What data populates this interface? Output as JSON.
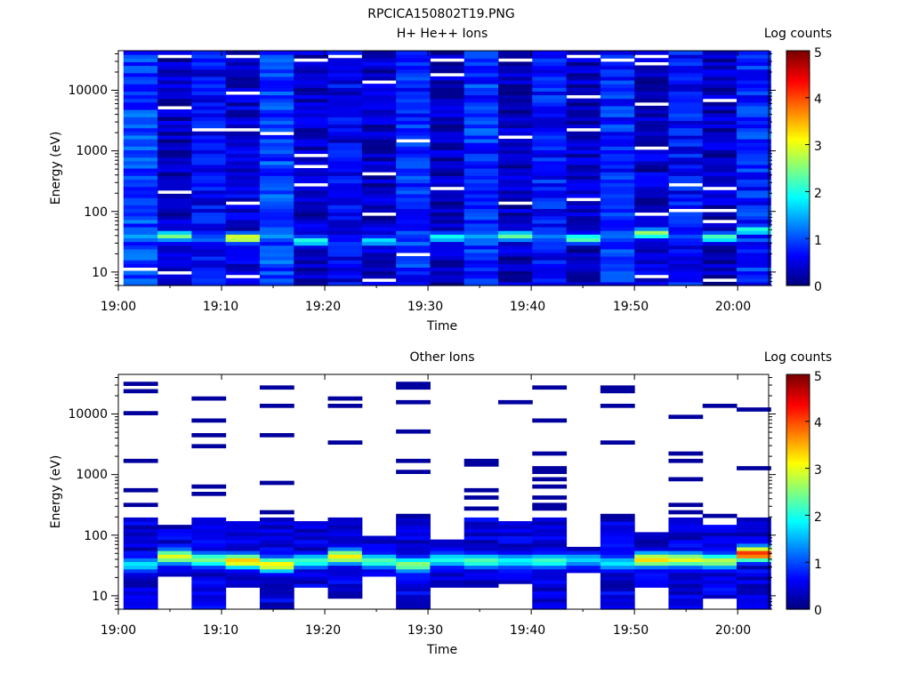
{
  "figure_title": "RPCICA150802T19.PNG",
  "chart_data": [
    {
      "type": "heatmap",
      "title": "H+ He++ Ions",
      "xlabel": "Time",
      "ylabel": "Energy (eV)",
      "x_ticks": [
        "19:00",
        "19:10",
        "19:20",
        "19:30",
        "19:40",
        "19:50",
        "20:00"
      ],
      "x_range_minutes": [
        0,
        63
      ],
      "y_ticks": [
        "10",
        "100",
        "1000",
        "10000"
      ],
      "y_scale": "log",
      "y_range_ev": [
        6,
        45000
      ],
      "colorbar": {
        "label": "Log counts",
        "range": [
          0,
          5
        ],
        "ticks": [
          "0",
          "1",
          "2",
          "3",
          "4",
          "5"
        ],
        "colormap": "jet"
      },
      "columns": [
        {
          "t_start": 0.5,
          "t_end": 3.8,
          "peak_ev": 38,
          "peak_log": 1.5,
          "bg_log": 0.95,
          "gaps": [
            12
          ]
        },
        {
          "t_start": 3.8,
          "t_end": 7.1,
          "peak_ev": 40,
          "peak_log": 2.5,
          "bg_log": 0.3,
          "gaps": [
            10,
            200,
            5500,
            35000
          ]
        },
        {
          "t_start": 7.1,
          "t_end": 10.4,
          "peak_ev": 36,
          "peak_log": 1.2,
          "bg_log": 0.6,
          "gaps": [
            2400
          ]
        },
        {
          "t_start": 10.4,
          "t_end": 13.7,
          "peak_ev": 37,
          "peak_log": 3.2,
          "bg_log": 0.4,
          "gaps": [
            8,
            140,
            2200,
            9000,
            36000
          ]
        },
        {
          "t_start": 13.7,
          "t_end": 17.0,
          "peak_ev": 40,
          "peak_log": 1.4,
          "bg_log": 0.95,
          "gaps": [
            2000
          ]
        },
        {
          "t_start": 17.0,
          "t_end": 20.3,
          "peak_ev": 33,
          "peak_log": 2.1,
          "bg_log": 0.35,
          "gaps": [
            260,
            550,
            900,
            32000
          ]
        },
        {
          "t_start": 20.3,
          "t_end": 23.6,
          "peak_ev": 30,
          "peak_log": 0.9,
          "bg_log": 0.55,
          "gaps": [
            35000
          ]
        },
        {
          "t_start": 23.6,
          "t_end": 26.9,
          "peak_ev": 33,
          "peak_log": 1.8,
          "bg_log": 0.35,
          "gaps": [
            7,
            95,
            400,
            13000
          ]
        },
        {
          "t_start": 26.9,
          "t_end": 30.2,
          "peak_ev": 30,
          "peak_log": 1.2,
          "bg_log": 0.8,
          "gaps": [
            20,
            1500
          ]
        },
        {
          "t_start": 30.2,
          "t_end": 33.5,
          "peak_ev": 38,
          "peak_log": 2.0,
          "bg_log": 0.3,
          "gaps": [
            230,
            18000,
            33000
          ]
        },
        {
          "t_start": 33.5,
          "t_end": 36.8,
          "peak_ev": 38,
          "peak_log": 1.5,
          "bg_log": 0.85,
          "gaps": []
        },
        {
          "t_start": 36.8,
          "t_end": 40.1,
          "peak_ev": 40,
          "peak_log": 2.4,
          "bg_log": 0.3,
          "gaps": [
            130,
            1800,
            32000
          ]
        },
        {
          "t_start": 40.1,
          "t_end": 43.4,
          "peak_ev": 38,
          "peak_log": 1.3,
          "bg_log": 0.7,
          "gaps": []
        },
        {
          "t_start": 43.4,
          "t_end": 46.7,
          "peak_ev": 36,
          "peak_log": 2.4,
          "bg_log": 0.3,
          "gaps": [
            150,
            2200,
            8000,
            35000
          ]
        },
        {
          "t_start": 46.7,
          "t_end": 50.0,
          "peak_ev": 38,
          "peak_log": 1.2,
          "bg_log": 0.8,
          "gaps": [
            30000
          ]
        },
        {
          "t_start": 50.0,
          "t_end": 53.3,
          "peak_ev": 44,
          "peak_log": 2.7,
          "bg_log": 0.35,
          "gaps": [
            9,
            85,
            1100,
            6000,
            28000,
            38000
          ]
        },
        {
          "t_start": 53.3,
          "t_end": 56.6,
          "peak_ev": 40,
          "peak_log": 1.0,
          "bg_log": 0.65,
          "gaps": [
            100,
            260
          ]
        },
        {
          "t_start": 56.6,
          "t_end": 59.9,
          "peak_ev": 38,
          "peak_log": 2.3,
          "bg_log": 0.3,
          "gaps": [
            7,
            70,
            100,
            240,
            7000
          ]
        },
        {
          "t_start": 59.9,
          "t_end": 63.2,
          "peak_ev": 50,
          "peak_log": 2.1,
          "bg_log": 0.8,
          "gaps": []
        }
      ]
    },
    {
      "type": "heatmap",
      "title": "Other Ions",
      "xlabel": "Time",
      "ylabel": "Energy (eV)",
      "x_ticks": [
        "19:00",
        "19:10",
        "19:20",
        "19:30",
        "19:40",
        "19:50",
        "20:00"
      ],
      "x_range_minutes": [
        0,
        63
      ],
      "y_ticks": [
        "10",
        "100",
        "1000",
        "10000"
      ],
      "y_scale": "log",
      "y_range_ev": [
        6,
        45000
      ],
      "colorbar": {
        "label": "Log counts",
        "range": [
          0,
          5
        ],
        "ticks": [
          "0",
          "1",
          "2",
          "3",
          "4",
          "5"
        ],
        "colormap": "jet"
      },
      "columns": [
        {
          "t_start": 0.5,
          "t_end": 3.8,
          "core_lo_ev": 6,
          "core_hi_ev": 200,
          "peak_ev": 33,
          "peak_log": 1.8,
          "sparse_ev": [
            330,
            520,
            1600,
            10000,
            24000,
            33000
          ]
        },
        {
          "t_start": 3.8,
          "t_end": 7.1,
          "core_lo_ev": 22,
          "core_hi_ev": 140,
          "peak_ev": 45,
          "peak_log": 3.0,
          "sparse_ev": []
        },
        {
          "t_start": 7.1,
          "t_end": 10.4,
          "core_lo_ev": 6,
          "core_hi_ev": 200,
          "peak_ev": 40,
          "peak_log": 2.5,
          "sparse_ev": [
            480,
            620,
            2800,
            4800,
            8000,
            18000
          ]
        },
        {
          "t_start": 10.4,
          "t_end": 13.7,
          "core_lo_ev": 14,
          "core_hi_ev": 180,
          "peak_ev": 38,
          "peak_log": 3.4,
          "sparse_ev": []
        },
        {
          "t_start": 13.7,
          "t_end": 17.0,
          "core_lo_ev": 6,
          "core_hi_ev": 200,
          "peak_ev": 33,
          "peak_log": 3.2,
          "sparse_ev": [
            230,
            700,
            4600,
            13000,
            26000
          ]
        },
        {
          "t_start": 17.0,
          "t_end": 20.3,
          "core_lo_ev": 14,
          "core_hi_ev": 170,
          "peak_ev": 38,
          "peak_log": 2.2,
          "sparse_ev": []
        },
        {
          "t_start": 20.3,
          "t_end": 23.6,
          "core_lo_ev": 9,
          "core_hi_ev": 200,
          "peak_ev": 45,
          "peak_log": 3.2,
          "sparse_ev": [
            3600,
            14000,
            17000
          ]
        },
        {
          "t_start": 23.6,
          "t_end": 26.9,
          "core_lo_ev": 20,
          "core_hi_ev": 100,
          "peak_ev": 38,
          "peak_log": 2.3,
          "sparse_ev": []
        },
        {
          "t_start": 26.9,
          "t_end": 30.2,
          "core_lo_ev": 6,
          "core_hi_ev": 200,
          "peak_ev": 33,
          "peak_log": 2.6,
          "sparse_ev": [
            220,
            1100,
            1800,
            4900,
            15000,
            26000,
            33000
          ]
        },
        {
          "t_start": 30.2,
          "t_end": 33.5,
          "core_lo_ev": 13,
          "core_hi_ev": 80,
          "peak_ev": 40,
          "peak_log": 2.0,
          "sparse_ev": []
        },
        {
          "t_start": 33.5,
          "t_end": 36.8,
          "core_lo_ev": 14,
          "core_hi_ev": 200,
          "peak_ev": 38,
          "peak_log": 2.3,
          "sparse_ev": [
            280,
            420,
            560,
            1400,
            1800
          ]
        },
        {
          "t_start": 36.8,
          "t_end": 40.1,
          "core_lo_ev": 16,
          "core_hi_ev": 170,
          "peak_ev": 38,
          "peak_log": 1.9,
          "sparse_ev": [
            15000
          ]
        },
        {
          "t_start": 40.1,
          "t_end": 43.4,
          "core_lo_ev": 6,
          "core_hi_ev": 200,
          "peak_ev": 38,
          "peak_log": 2.2,
          "sparse_ev": [
            260,
            330,
            430,
            600,
            900,
            1100,
            1300,
            2400,
            8000,
            27000
          ]
        },
        {
          "t_start": 43.4,
          "t_end": 46.7,
          "core_lo_ev": 25,
          "core_hi_ev": 60,
          "peak_ev": 40,
          "peak_log": 1.7,
          "sparse_ev": []
        },
        {
          "t_start": 46.7,
          "t_end": 50.0,
          "core_lo_ev": 6,
          "core_hi_ev": 200,
          "peak_ev": 35,
          "peak_log": 1.8,
          "sparse_ev": [
            220,
            3400,
            14000,
            23000,
            29000
          ]
        },
        {
          "t_start": 50.0,
          "t_end": 53.3,
          "core_lo_ev": 14,
          "core_hi_ev": 120,
          "peak_ev": 40,
          "peak_log": 3.3,
          "sparse_ev": []
        },
        {
          "t_start": 53.3,
          "t_end": 56.6,
          "core_lo_ev": 6,
          "core_hi_ev": 200,
          "peak_ev": 40,
          "peak_log": 3.0,
          "sparse_ev": [
            240,
            320,
            900,
            1800,
            2400,
            8500
          ]
        },
        {
          "t_start": 56.6,
          "t_end": 59.9,
          "core_lo_ev": 9,
          "core_hi_ev": 140,
          "peak_ev": 38,
          "peak_log": 2.8,
          "sparse_ev": [
            220,
            14000
          ]
        },
        {
          "t_start": 59.9,
          "t_end": 63.2,
          "core_lo_ev": 6,
          "core_hi_ev": 200,
          "peak_ev": 50,
          "peak_log": 4.2,
          "sparse_ev": [
            1300,
            12000
          ]
        }
      ]
    }
  ]
}
